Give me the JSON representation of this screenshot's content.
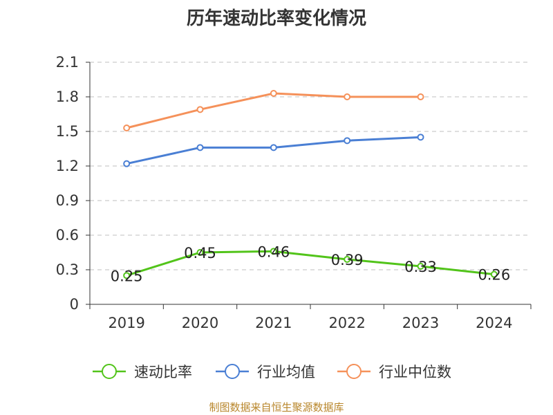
{
  "chart_data": {
    "type": "line",
    "title": "历年速动比率变化情况",
    "categories": [
      "2019",
      "2020",
      "2021",
      "2022",
      "2023",
      "2024"
    ],
    "ylim": [
      0,
      2.1
    ],
    "yticks": [
      "0",
      "0.3",
      "0.6",
      "0.9",
      "1.2",
      "1.5",
      "1.8",
      "2.1"
    ],
    "grid": true,
    "legend_position": "bottom",
    "series": [
      {
        "name": "速动比率",
        "color": "#52c41a",
        "values": [
          0.25,
          0.45,
          0.46,
          0.39,
          0.33,
          0.26
        ],
        "labels": [
          "0.25",
          "0.45",
          "0.46",
          "0.39",
          "0.33",
          "0.26"
        ]
      },
      {
        "name": "行业均值",
        "color": "#4a7fd4",
        "values": [
          1.22,
          1.36,
          1.36,
          1.42,
          1.45,
          null
        ]
      },
      {
        "name": "行业中位数",
        "color": "#f5915a",
        "values": [
          1.53,
          1.69,
          1.83,
          1.8,
          1.8,
          null
        ]
      }
    ]
  },
  "source_note": "制图数据来自恒生聚源数据库"
}
